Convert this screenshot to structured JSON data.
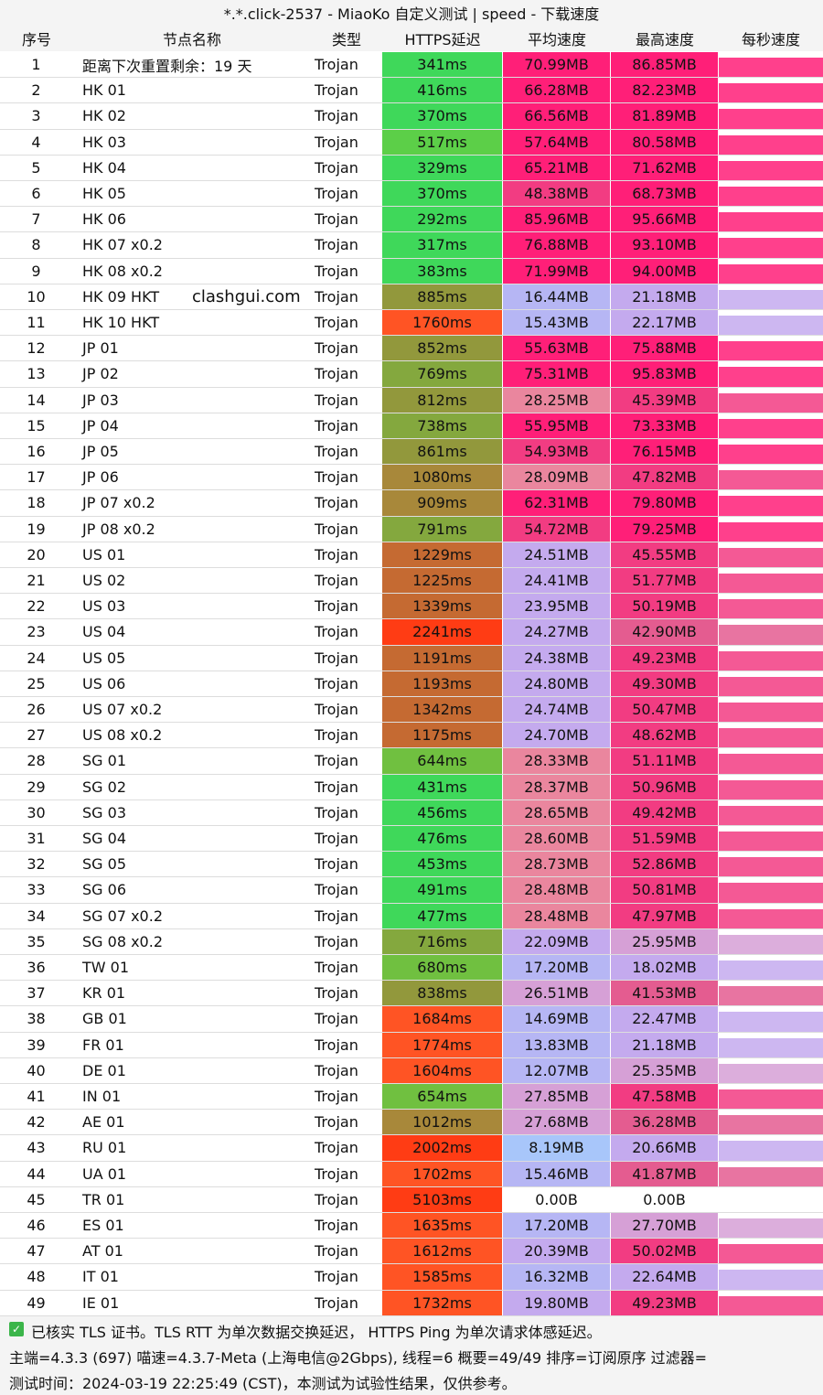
{
  "header": {
    "title": "*.*.click-2537 - MiaoKo 自定义测试 | speed - 下载速度"
  },
  "watermark": "clashgui.com",
  "table": {
    "columns": [
      "序号",
      "节点名称",
      "类型",
      "HTTPS延迟",
      "平均速度",
      "最高速度",
      "每秒速度"
    ],
    "rows": [
      [
        1,
        "距离下次重置剩余：19 天",
        "Trojan",
        "341ms",
        "70.99MB",
        "86.85MB"
      ],
      [
        2,
        "HK 01",
        "Trojan",
        "416ms",
        "66.28MB",
        "82.23MB"
      ],
      [
        3,
        "HK 02",
        "Trojan",
        "370ms",
        "66.56MB",
        "81.89MB"
      ],
      [
        4,
        "HK 03",
        "Trojan",
        "517ms",
        "57.64MB",
        "80.58MB"
      ],
      [
        5,
        "HK 04",
        "Trojan",
        "329ms",
        "65.21MB",
        "71.62MB"
      ],
      [
        6,
        "HK 05",
        "Trojan",
        "370ms",
        "48.38MB",
        "68.73MB"
      ],
      [
        7,
        "HK 06",
        "Trojan",
        "292ms",
        "85.96MB",
        "95.66MB"
      ],
      [
        8,
        "HK 07 x0.2",
        "Trojan",
        "317ms",
        "76.88MB",
        "93.10MB"
      ],
      [
        9,
        "HK 08 x0.2",
        "Trojan",
        "383ms",
        "71.99MB",
        "94.00MB"
      ],
      [
        10,
        "HK 09 HKT",
        "Trojan",
        "885ms",
        "16.44MB",
        "21.18MB"
      ],
      [
        11,
        "HK 10 HKT",
        "Trojan",
        "1760ms",
        "15.43MB",
        "22.17MB"
      ],
      [
        12,
        "JP 01",
        "Trojan",
        "852ms",
        "55.63MB",
        "75.88MB"
      ],
      [
        13,
        "JP 02",
        "Trojan",
        "769ms",
        "75.31MB",
        "95.83MB"
      ],
      [
        14,
        "JP 03",
        "Trojan",
        "812ms",
        "28.25MB",
        "45.39MB"
      ],
      [
        15,
        "JP 04",
        "Trojan",
        "738ms",
        "55.95MB",
        "73.33MB"
      ],
      [
        16,
        "JP 05",
        "Trojan",
        "861ms",
        "54.93MB",
        "76.15MB"
      ],
      [
        17,
        "JP 06",
        "Trojan",
        "1080ms",
        "28.09MB",
        "47.82MB"
      ],
      [
        18,
        "JP 07 x0.2",
        "Trojan",
        "909ms",
        "62.31MB",
        "79.80MB"
      ],
      [
        19,
        "JP 08 x0.2",
        "Trojan",
        "791ms",
        "54.72MB",
        "79.25MB"
      ],
      [
        20,
        "US 01",
        "Trojan",
        "1229ms",
        "24.51MB",
        "45.55MB"
      ],
      [
        21,
        "US 02",
        "Trojan",
        "1225ms",
        "24.41MB",
        "51.77MB"
      ],
      [
        22,
        "US 03",
        "Trojan",
        "1339ms",
        "23.95MB",
        "50.19MB"
      ],
      [
        23,
        "US 04",
        "Trojan",
        "2241ms",
        "24.27MB",
        "42.90MB"
      ],
      [
        24,
        "US 05",
        "Trojan",
        "1191ms",
        "24.38MB",
        "49.23MB"
      ],
      [
        25,
        "US 06",
        "Trojan",
        "1193ms",
        "24.80MB",
        "49.30MB"
      ],
      [
        26,
        "US 07 x0.2",
        "Trojan",
        "1342ms",
        "24.74MB",
        "50.47MB"
      ],
      [
        27,
        "US 08 x0.2",
        "Trojan",
        "1175ms",
        "24.70MB",
        "48.62MB"
      ],
      [
        28,
        "SG 01",
        "Trojan",
        "644ms",
        "28.33MB",
        "51.11MB"
      ],
      [
        29,
        "SG 02",
        "Trojan",
        "431ms",
        "28.37MB",
        "50.96MB"
      ],
      [
        30,
        "SG 03",
        "Trojan",
        "456ms",
        "28.65MB",
        "49.42MB"
      ],
      [
        31,
        "SG 04",
        "Trojan",
        "476ms",
        "28.60MB",
        "51.59MB"
      ],
      [
        32,
        "SG 05",
        "Trojan",
        "453ms",
        "28.73MB",
        "52.86MB"
      ],
      [
        33,
        "SG 06",
        "Trojan",
        "491ms",
        "28.48MB",
        "50.81MB"
      ],
      [
        34,
        "SG 07 x0.2",
        "Trojan",
        "477ms",
        "28.48MB",
        "47.97MB"
      ],
      [
        35,
        "SG 08 x0.2",
        "Trojan",
        "716ms",
        "22.09MB",
        "25.95MB"
      ],
      [
        36,
        "TW 01",
        "Trojan",
        "680ms",
        "17.20MB",
        "18.02MB"
      ],
      [
        37,
        "KR 01",
        "Trojan",
        "838ms",
        "26.51MB",
        "41.53MB"
      ],
      [
        38,
        "GB 01",
        "Trojan",
        "1684ms",
        "14.69MB",
        "22.47MB"
      ],
      [
        39,
        "FR 01",
        "Trojan",
        "1774ms",
        "13.83MB",
        "21.18MB"
      ],
      [
        40,
        "DE 01",
        "Trojan",
        "1604ms",
        "12.07MB",
        "25.35MB"
      ],
      [
        41,
        "IN 01",
        "Trojan",
        "654ms",
        "27.85MB",
        "47.58MB"
      ],
      [
        42,
        "AE 01",
        "Trojan",
        "1012ms",
        "27.68MB",
        "36.28MB"
      ],
      [
        43,
        "RU 01",
        "Trojan",
        "2002ms",
        "8.19MB",
        "20.66MB"
      ],
      [
        44,
        "UA 01",
        "Trojan",
        "1702ms",
        "15.46MB",
        "41.87MB"
      ],
      [
        45,
        "TR 01",
        "Trojan",
        "5103ms",
        "0.00B",
        "0.00B"
      ],
      [
        46,
        "ES 01",
        "Trojan",
        "1635ms",
        "17.20MB",
        "27.70MB"
      ],
      [
        47,
        "AT 01",
        "Trojan",
        "1612ms",
        "20.39MB",
        "50.02MB"
      ],
      [
        48,
        "IT 01",
        "Trojan",
        "1585ms",
        "16.32MB",
        "22.64MB"
      ],
      [
        49,
        "IE 01",
        "Trojan",
        "1732ms",
        "19.80MB",
        "49.23MB"
      ]
    ]
  },
  "footer": [
    "已核实 TLS 证书。TLS RTT 为单次数据交换延迟， HTTPS Ping 为单次请求体感延迟。",
    "主端=4.3.3 (697) 喵速=4.3.7-Meta (上海电信@2Gbps), 线程=6 概要=49/49 排序=订阅原序 过滤器=",
    "测试时间：2024-03-19 22:25:49 (CST)，本测试为试验性结果，仅供参考。"
  ]
}
